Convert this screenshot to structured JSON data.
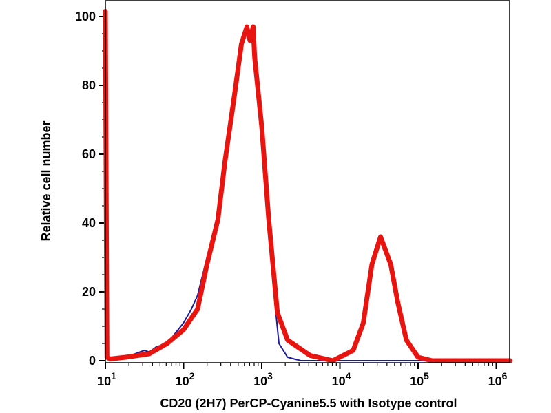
{
  "chart_data": {
    "type": "line",
    "title": "",
    "xlabel": "CD20 (2H7) PerCP-Cyanine5.5 with Isotype control",
    "ylabel": "Relative cell number",
    "x_scale": "log10",
    "xlim_log10": [
      1,
      6.18
    ],
    "ylim": [
      -0.6,
      104.6
    ],
    "grid": false,
    "legend": "none",
    "x_tick_labels": [
      {
        "base": "10",
        "exp": "1",
        "log10": 1
      },
      {
        "base": "10",
        "exp": "2",
        "log10": 2
      },
      {
        "base": "10",
        "exp": "3",
        "log10": 3
      },
      {
        "base": "10",
        "exp": "4",
        "log10": 4
      },
      {
        "base": "10",
        "exp": "5",
        "log10": 5
      },
      {
        "base": "10",
        "exp": "6",
        "log10": 6
      }
    ],
    "y_ticks": [
      0,
      20,
      40,
      60,
      80,
      100
    ],
    "y_tick_labels": [
      "0",
      "20",
      "40",
      "60",
      "80",
      "100"
    ],
    "series": [
      {
        "name": "Isotype control",
        "color": "#1a1a9a",
        "x_log10": [
          1.0,
          1.02,
          1.06,
          1.26,
          1.5,
          1.56,
          1.65,
          1.79,
          2.0,
          2.1,
          2.18,
          2.3,
          2.44,
          2.53,
          2.65,
          2.74,
          2.81,
          2.89,
          2.91,
          3.0,
          3.09,
          3.15,
          3.22,
          3.33,
          3.5,
          4.0,
          5.0,
          6.18
        ],
        "y": [
          101.5,
          1,
          0.5,
          1,
          3,
          2.5,
          4,
          5,
          11,
          15,
          19,
          30,
          42,
          58,
          77,
          92,
          96,
          95,
          88,
          65,
          38,
          21,
          5,
          1,
          0,
          0,
          0,
          0
        ]
      },
      {
        "name": "CD20 (2H7) PerCP-Cyanine5.5",
        "color": "#e8140f",
        "x_log10": [
          1.0,
          1.02,
          1.06,
          1.26,
          1.56,
          1.79,
          2.0,
          2.18,
          2.3,
          2.44,
          2.53,
          2.65,
          2.74,
          2.81,
          2.85,
          2.89,
          2.91,
          3.0,
          3.09,
          3.2,
          3.33,
          3.62,
          3.91,
          4.17,
          4.3,
          4.41,
          4.52,
          4.65,
          4.74,
          4.85,
          5.0,
          5.18,
          6.18
        ],
        "y": [
          101.5,
          1,
          0.5,
          1,
          2,
          5,
          9,
          15,
          28,
          41,
          58,
          77,
          92,
          97,
          93,
          97,
          88,
          68,
          41,
          14,
          6,
          1.5,
          0,
          3,
          11,
          28,
          36,
          28,
          17,
          6,
          1,
          0,
          0
        ]
      }
    ]
  }
}
